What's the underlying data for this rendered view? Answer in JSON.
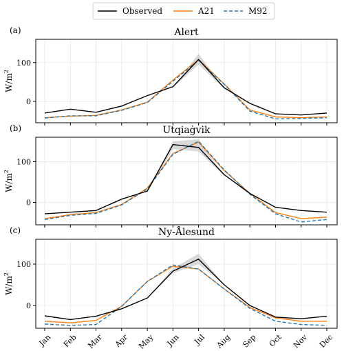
{
  "chart_data": {
    "type": "line",
    "categories": [
      "Jan",
      "Feb",
      "Mar",
      "Apr",
      "May",
      "Jun",
      "Jul",
      "Aug",
      "Sep",
      "Oct",
      "Nov",
      "Dec"
    ],
    "legend": {
      "placement": "top-center",
      "entries": [
        {
          "label": "Observed",
          "color": "#000000",
          "style": "solid"
        },
        {
          "label": "A21",
          "color": "#ff7f0e",
          "style": "solid"
        },
        {
          "label": "M92",
          "color": "#1f77b4",
          "style": "dashed"
        }
      ]
    },
    "panels": [
      {
        "letter": "(a)",
        "title": "Alert",
        "ylabel": "W/m",
        "ylabel_sup": "2",
        "ylim": [
          -55,
          160
        ],
        "yticks": [
          0,
          100
        ],
        "grid": true,
        "band": {
          "lower": [
            -32,
            -22,
            -31,
            -14,
            15,
            36,
            95,
            32,
            -7,
            -34,
            -37,
            -32
          ],
          "upper": [
            -32,
            -22,
            -31,
            -14,
            15,
            36,
            123,
            32,
            -7,
            -34,
            -37,
            -32
          ]
        },
        "series": [
          {
            "name": "Observed",
            "values": [
              -30,
              -20,
              -28,
              -12,
              15,
              38,
              108,
              35,
              -5,
              -32,
              -35,
              -30
            ]
          },
          {
            "name": "A21",
            "values": [
              -42,
              -38,
              -36,
              -22,
              -2,
              55,
              108,
              45,
              -22,
              -40,
              -42,
              -40
            ]
          },
          {
            "name": "M92",
            "values": [
              -43,
              -37,
              -37,
              -23,
              -3,
              52,
              106,
              44,
              -25,
              -45,
              -44,
              -42
            ]
          }
        ]
      },
      {
        "letter": "(b)",
        "title": "Utqiaġvik",
        "ylabel": "W/m",
        "ylabel_sup": "2",
        "ylim": [
          -55,
          160
        ],
        "yticks": [
          0,
          100
        ],
        "grid": true,
        "band": {
          "lower": [
            -29,
            -25,
            -21,
            7,
            25,
            131,
            125,
            65,
            20,
            -14,
            -20,
            -24
          ],
          "upper": [
            -29,
            -25,
            -21,
            7,
            25,
            150,
            155,
            65,
            20,
            -14,
            -20,
            -24
          ]
        },
        "series": [
          {
            "name": "Observed",
            "values": [
              -28,
              -24,
              -20,
              8,
              28,
              142,
              135,
              68,
              22,
              -12,
              -20,
              -24
            ]
          },
          {
            "name": "A21",
            "values": [
              -40,
              -30,
              -25,
              -5,
              35,
              120,
              148,
              78,
              22,
              -25,
              -40,
              -36
            ]
          },
          {
            "name": "M92",
            "values": [
              -42,
              -32,
              -27,
              -6,
              33,
              118,
              150,
              80,
              20,
              -28,
              -48,
              -42
            ]
          }
        ]
      },
      {
        "letter": "(c)",
        "title": "Ny-Ålesund",
        "ylabel": "W/m",
        "ylabel_sup": "2",
        "ylim": [
          -55,
          160
        ],
        "yticks": [
          0,
          100
        ],
        "grid": true,
        "band": {
          "lower": [
            -26,
            -36,
            -28,
            -10,
            18,
            78,
            100,
            50,
            -2,
            -30,
            -34,
            -28
          ],
          "upper": [
            -26,
            -36,
            -28,
            -10,
            18,
            90,
            125,
            50,
            -2,
            -30,
            -34,
            -28
          ]
        },
        "series": [
          {
            "name": "Observed",
            "values": [
              -25,
              -34,
              -26,
              -8,
              18,
              83,
              112,
              50,
              0,
              -28,
              -32,
              -26
            ]
          },
          {
            "name": "A21",
            "values": [
              -38,
              -42,
              -36,
              -2,
              58,
              95,
              88,
              40,
              -5,
              -30,
              -38,
              -38
            ]
          },
          {
            "name": "M92",
            "values": [
              -45,
              -48,
              -46,
              -2,
              58,
              98,
              88,
              40,
              -7,
              -38,
              -46,
              -48
            ]
          }
        ]
      }
    ]
  }
}
